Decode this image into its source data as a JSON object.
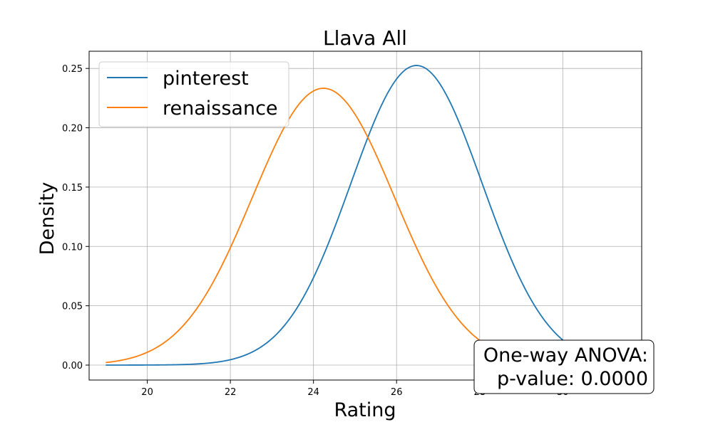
{
  "chart_data": {
    "type": "line",
    "title": "Llava All",
    "xlabel": "Rating",
    "ylabel": "Density",
    "xlim": [
      18.6,
      31.9
    ],
    "ylim": [
      -0.0126,
      0.2645
    ],
    "grid": true,
    "legend_position": "top-left",
    "xticks": [
      20,
      22,
      24,
      26,
      28,
      30
    ],
    "yticks": [
      0.0,
      0.05,
      0.1,
      0.15,
      0.2,
      0.25
    ],
    "ytick_labels": [
      "0.00",
      "0.05",
      "0.10",
      "0.15",
      "0.20",
      "0.25"
    ],
    "series": [
      {
        "name": "pinterest",
        "color": "#1f77b4",
        "mean": 26.48,
        "std": 1.58,
        "x_range": [
          19.0,
          30.3
        ]
      },
      {
        "name": "renaissance",
        "color": "#ff7f0e",
        "mean": 24.24,
        "std": 1.71,
        "x_range": [
          19.0,
          31.4
        ]
      }
    ],
    "annotation": {
      "line1": "One-way ANOVA:",
      "line2": "p-value: 0.0000"
    }
  }
}
